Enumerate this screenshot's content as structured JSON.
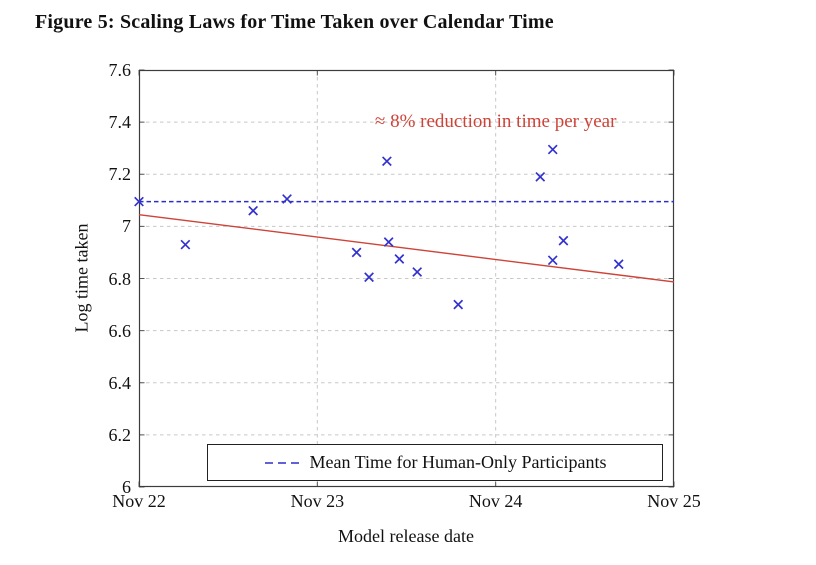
{
  "figure": {
    "title": "Figure 5: Scaling Laws for Time Taken over Calendar Time"
  },
  "chart_data": {
    "type": "scatter",
    "title": "Figure 5: Scaling Laws for Time Taken over Calendar Time",
    "xlabel": "Model release date",
    "ylabel": "Log time taken",
    "xlim": [
      0,
      3
    ],
    "ylim": [
      6,
      7.6
    ],
    "grid": true,
    "x_ticks": [
      {
        "value": 0,
        "label": "Nov 22"
      },
      {
        "value": 1,
        "label": "Nov 23"
      },
      {
        "value": 2,
        "label": "Nov 24"
      },
      {
        "value": 3,
        "label": "Nov 25"
      }
    ],
    "y_ticks": [
      {
        "value": 6,
        "label": "6"
      },
      {
        "value": 6.2,
        "label": "6.2"
      },
      {
        "value": 6.4,
        "label": "6.4"
      },
      {
        "value": 6.6,
        "label": "6.6"
      },
      {
        "value": 6.8,
        "label": "6.8"
      },
      {
        "value": 7,
        "label": "7"
      },
      {
        "value": 7.2,
        "label": "7.2"
      },
      {
        "value": 7.4,
        "label": "7.4"
      },
      {
        "value": 7.6,
        "label": "7.6"
      }
    ],
    "points": [
      [
        0.0,
        7.095
      ],
      [
        0.26,
        6.93
      ],
      [
        0.64,
        7.06
      ],
      [
        0.83,
        7.105
      ],
      [
        1.22,
        6.9
      ],
      [
        1.29,
        6.805
      ],
      [
        1.39,
        7.25
      ],
      [
        1.4,
        6.94
      ],
      [
        1.46,
        6.875
      ],
      [
        1.56,
        6.825
      ],
      [
        1.79,
        6.7
      ],
      [
        2.25,
        7.19
      ],
      [
        2.32,
        7.295
      ],
      [
        2.32,
        6.87
      ],
      [
        2.38,
        6.945
      ],
      [
        2.69,
        6.855
      ]
    ],
    "trend_line": {
      "from": [
        0,
        7.045
      ],
      "to": [
        3,
        6.787
      ]
    },
    "mean_line": {
      "y": 7.095,
      "style": "dashed"
    },
    "annotation": {
      "text": "≈ 8% reduction in time per year",
      "x": 2.0,
      "y": 7.4
    },
    "legend": {
      "position": "south",
      "label": "Mean Time for Human-Only Participants"
    },
    "colors": {
      "scatter": "#3232cf",
      "mean_line": "#2d2dcc",
      "trend_line": "#cd4338",
      "annotation": "#cd4338",
      "grid": "#c8c8c8",
      "axis": "#3c3c3c",
      "tick": "#555555",
      "text": "#111111"
    }
  }
}
